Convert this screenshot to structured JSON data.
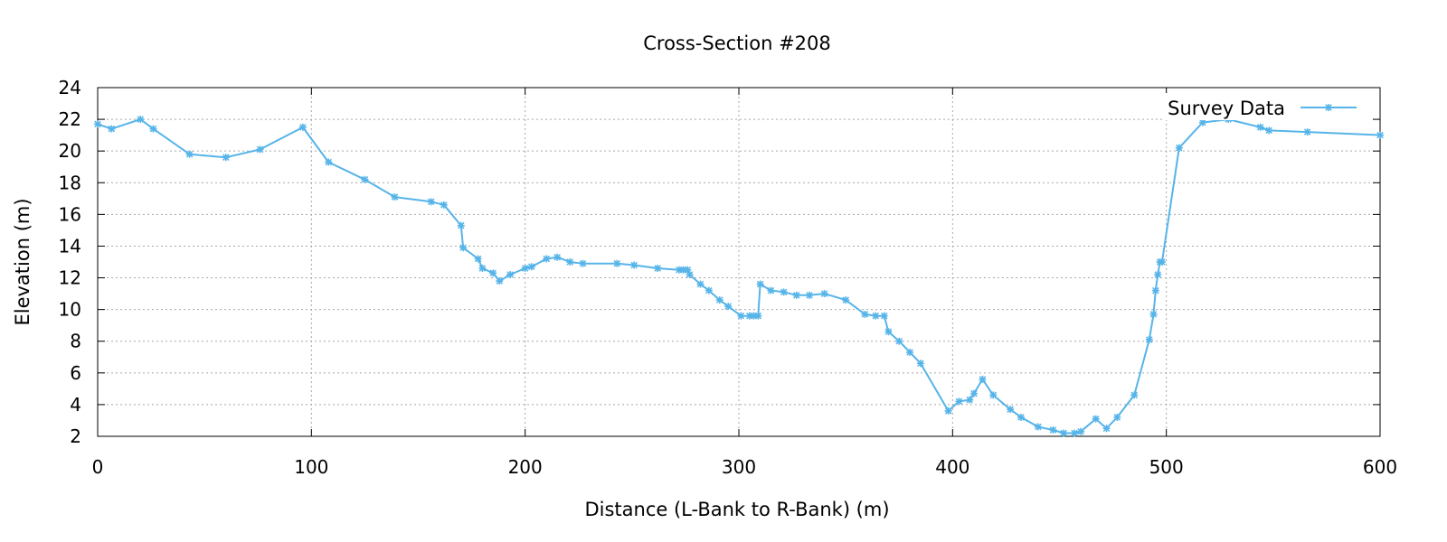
{
  "chart_data": {
    "type": "line",
    "title": "Cross-Section #208",
    "xlabel": "Distance (L-Bank to R-Bank) (m)",
    "ylabel": "Elevation (m)",
    "xlim": [
      0,
      600
    ],
    "ylim": [
      2,
      24
    ],
    "xticks": [
      "0",
      "100",
      "200",
      "300",
      "400",
      "500",
      "600"
    ],
    "yticks": [
      "2",
      "4",
      "6",
      "8",
      "10",
      "12",
      "14",
      "16",
      "18",
      "20",
      "22",
      "24"
    ],
    "grid": true,
    "legend": "top-right",
    "series": [
      {
        "name": "Survey Data",
        "color": "#56b4e9",
        "marker": "asterisk",
        "x": [
          0,
          6.5,
          20,
          26,
          43,
          60,
          76,
          96,
          108,
          125,
          139,
          156,
          162,
          170,
          171,
          178,
          180,
          185,
          188,
          193,
          200,
          203,
          210,
          215,
          221,
          227,
          243,
          251,
          262,
          272,
          274,
          276,
          277,
          282,
          286,
          291,
          295,
          301,
          305,
          307,
          309,
          310,
          315,
          321,
          327,
          333,
          340,
          350,
          359,
          364,
          368,
          370,
          375,
          380,
          385,
          398,
          403,
          408,
          410,
          414,
          419,
          427,
          432,
          440,
          447,
          452,
          457,
          460,
          467,
          472,
          477,
          485,
          492,
          494,
          495,
          496,
          497,
          498,
          506,
          517,
          529,
          544,
          548,
          566,
          600
        ],
        "y": [
          21.7,
          21.4,
          22.0,
          21.4,
          19.8,
          19.6,
          20.1,
          21.5,
          19.3,
          18.2,
          17.1,
          16.8,
          16.6,
          15.3,
          13.9,
          13.2,
          12.6,
          12.3,
          11.8,
          12.2,
          12.6,
          12.7,
          13.2,
          13.3,
          13.0,
          12.9,
          12.9,
          12.8,
          12.6,
          12.5,
          12.5,
          12.5,
          12.2,
          11.6,
          11.2,
          10.6,
          10.2,
          9.6,
          9.6,
          9.6,
          9.6,
          11.6,
          11.2,
          11.1,
          10.9,
          10.9,
          11.0,
          10.6,
          9.7,
          9.6,
          9.6,
          8.6,
          8.0,
          7.3,
          6.6,
          3.6,
          4.2,
          4.3,
          4.7,
          5.6,
          4.6,
          3.7,
          3.2,
          2.6,
          2.4,
          2.2,
          2.2,
          2.3,
          3.1,
          2.5,
          3.2,
          4.6,
          8.1,
          9.7,
          11.2,
          12.2,
          13.0,
          13.0,
          20.2,
          21.8,
          22.0,
          21.5,
          21.3,
          21.2,
          21.0
        ]
      }
    ]
  }
}
